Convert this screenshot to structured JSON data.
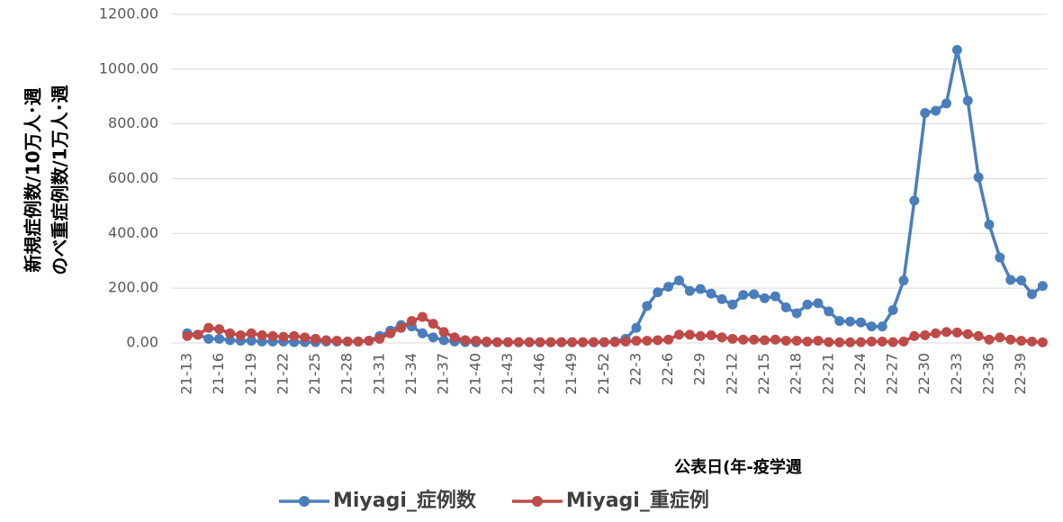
{
  "chart_data": {
    "type": "line",
    "ylabel": [
      "新規症例数/10万人･週",
      "のべ重症例数/1万人･週"
    ],
    "xlabel": "公表日(年-疫学週",
    "categories": [
      "21-13",
      null,
      null,
      "21-16",
      null,
      null,
      "21-19",
      null,
      null,
      "21-22",
      null,
      null,
      "21-25",
      null,
      null,
      "21-28",
      null,
      null,
      "21-31",
      null,
      null,
      "21-34",
      null,
      null,
      "21-37",
      null,
      null,
      "21-40",
      null,
      null,
      "21-43",
      null,
      null,
      "21-46",
      null,
      null,
      "21-49",
      null,
      null,
      "21-52",
      null,
      null,
      "22-3",
      null,
      null,
      "22-6",
      null,
      null,
      "22-9",
      null,
      null,
      "22-12",
      null,
      null,
      "22-15",
      null,
      null,
      "22-18",
      null,
      null,
      "22-21",
      null,
      null,
      "22-24",
      null,
      null,
      "22-27",
      null,
      null,
      "22-30",
      null,
      null,
      "22-33",
      null,
      null,
      "22-36",
      null,
      null,
      "22-39",
      null,
      null
    ],
    "series": [
      {
        "name": "Miyagi_症例数",
        "color": "#4a7ebb",
        "values": [
          35,
          30,
          15,
          15,
          10,
          8,
          8,
          5,
          5,
          5,
          3,
          3,
          3,
          5,
          5,
          5,
          5,
          8,
          25,
          45,
          65,
          60,
          35,
          20,
          10,
          5,
          3,
          2,
          2,
          2,
          2,
          2,
          2,
          2,
          2,
          2,
          2,
          2,
          2,
          2,
          5,
          15,
          55,
          135,
          185,
          205,
          228,
          190,
          197,
          180,
          160,
          140,
          175,
          178,
          163,
          170,
          130,
          108,
          140,
          145,
          115,
          80,
          78,
          75,
          60,
          60,
          120,
          228,
          520,
          840,
          848,
          875,
          1070,
          885,
          605,
          432,
          312,
          230,
          228,
          178,
          208
        ]
      },
      {
        "name": "Miyagi_重症例",
        "color": "#be4b48",
        "values": [
          25,
          30,
          55,
          50,
          35,
          28,
          35,
          28,
          25,
          22,
          25,
          20,
          15,
          10,
          8,
          5,
          5,
          8,
          15,
          35,
          55,
          80,
          95,
          70,
          40,
          20,
          10,
          8,
          5,
          3,
          3,
          3,
          3,
          3,
          3,
          3,
          3,
          3,
          3,
          3,
          3,
          5,
          8,
          8,
          10,
          12,
          30,
          30,
          25,
          28,
          20,
          15,
          12,
          12,
          10,
          12,
          8,
          8,
          5,
          8,
          3,
          2,
          2,
          3,
          5,
          5,
          3,
          5,
          25,
          28,
          35,
          40,
          38,
          32,
          25,
          12,
          20,
          12,
          8,
          5,
          2
        ]
      }
    ],
    "ylim": [
      0,
      1200
    ],
    "yticks": [
      {
        "value": 0,
        "label": "0.00"
      },
      {
        "value": 200,
        "label": "200.00"
      },
      {
        "value": 400,
        "label": "400.00"
      },
      {
        "value": 600,
        "label": "600.00"
      },
      {
        "value": 800,
        "label": "800.00"
      },
      {
        "value": 1000,
        "label": "1000.00"
      },
      {
        "value": 1200,
        "label": "1200.00"
      }
    ],
    "grid": true,
    "legend": "bottom"
  }
}
